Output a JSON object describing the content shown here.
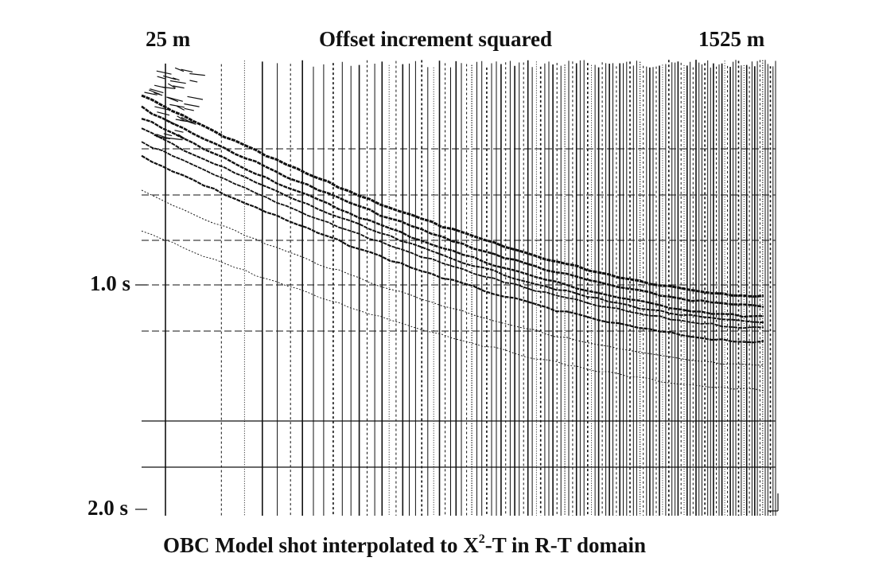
{
  "figure": {
    "offset_start_label": "25 m",
    "offset_axis_title": "Offset increment squared",
    "offset_end_label": "1525 m",
    "time_label_upper": "1.0 s",
    "time_label_lower": "2.0 s",
    "caption_prefix": "OBC Model shot interpolated to X",
    "caption_superscript": "2",
    "caption_suffix": "-T in R-T domain"
  },
  "chart_data": {
    "type": "seismic-trace-gather",
    "x_axis": {
      "variable": "offset squared",
      "start": "25 m",
      "end": "1525 m",
      "title": "Offset increment squared"
    },
    "y_axis": {
      "variable": "two-way time",
      "ticks": [
        "1.0 s",
        "2.0 s"
      ],
      "direction": "down"
    },
    "grid": true,
    "colors": {
      "trace": "#111111",
      "background": "#ffffff"
    }
  }
}
